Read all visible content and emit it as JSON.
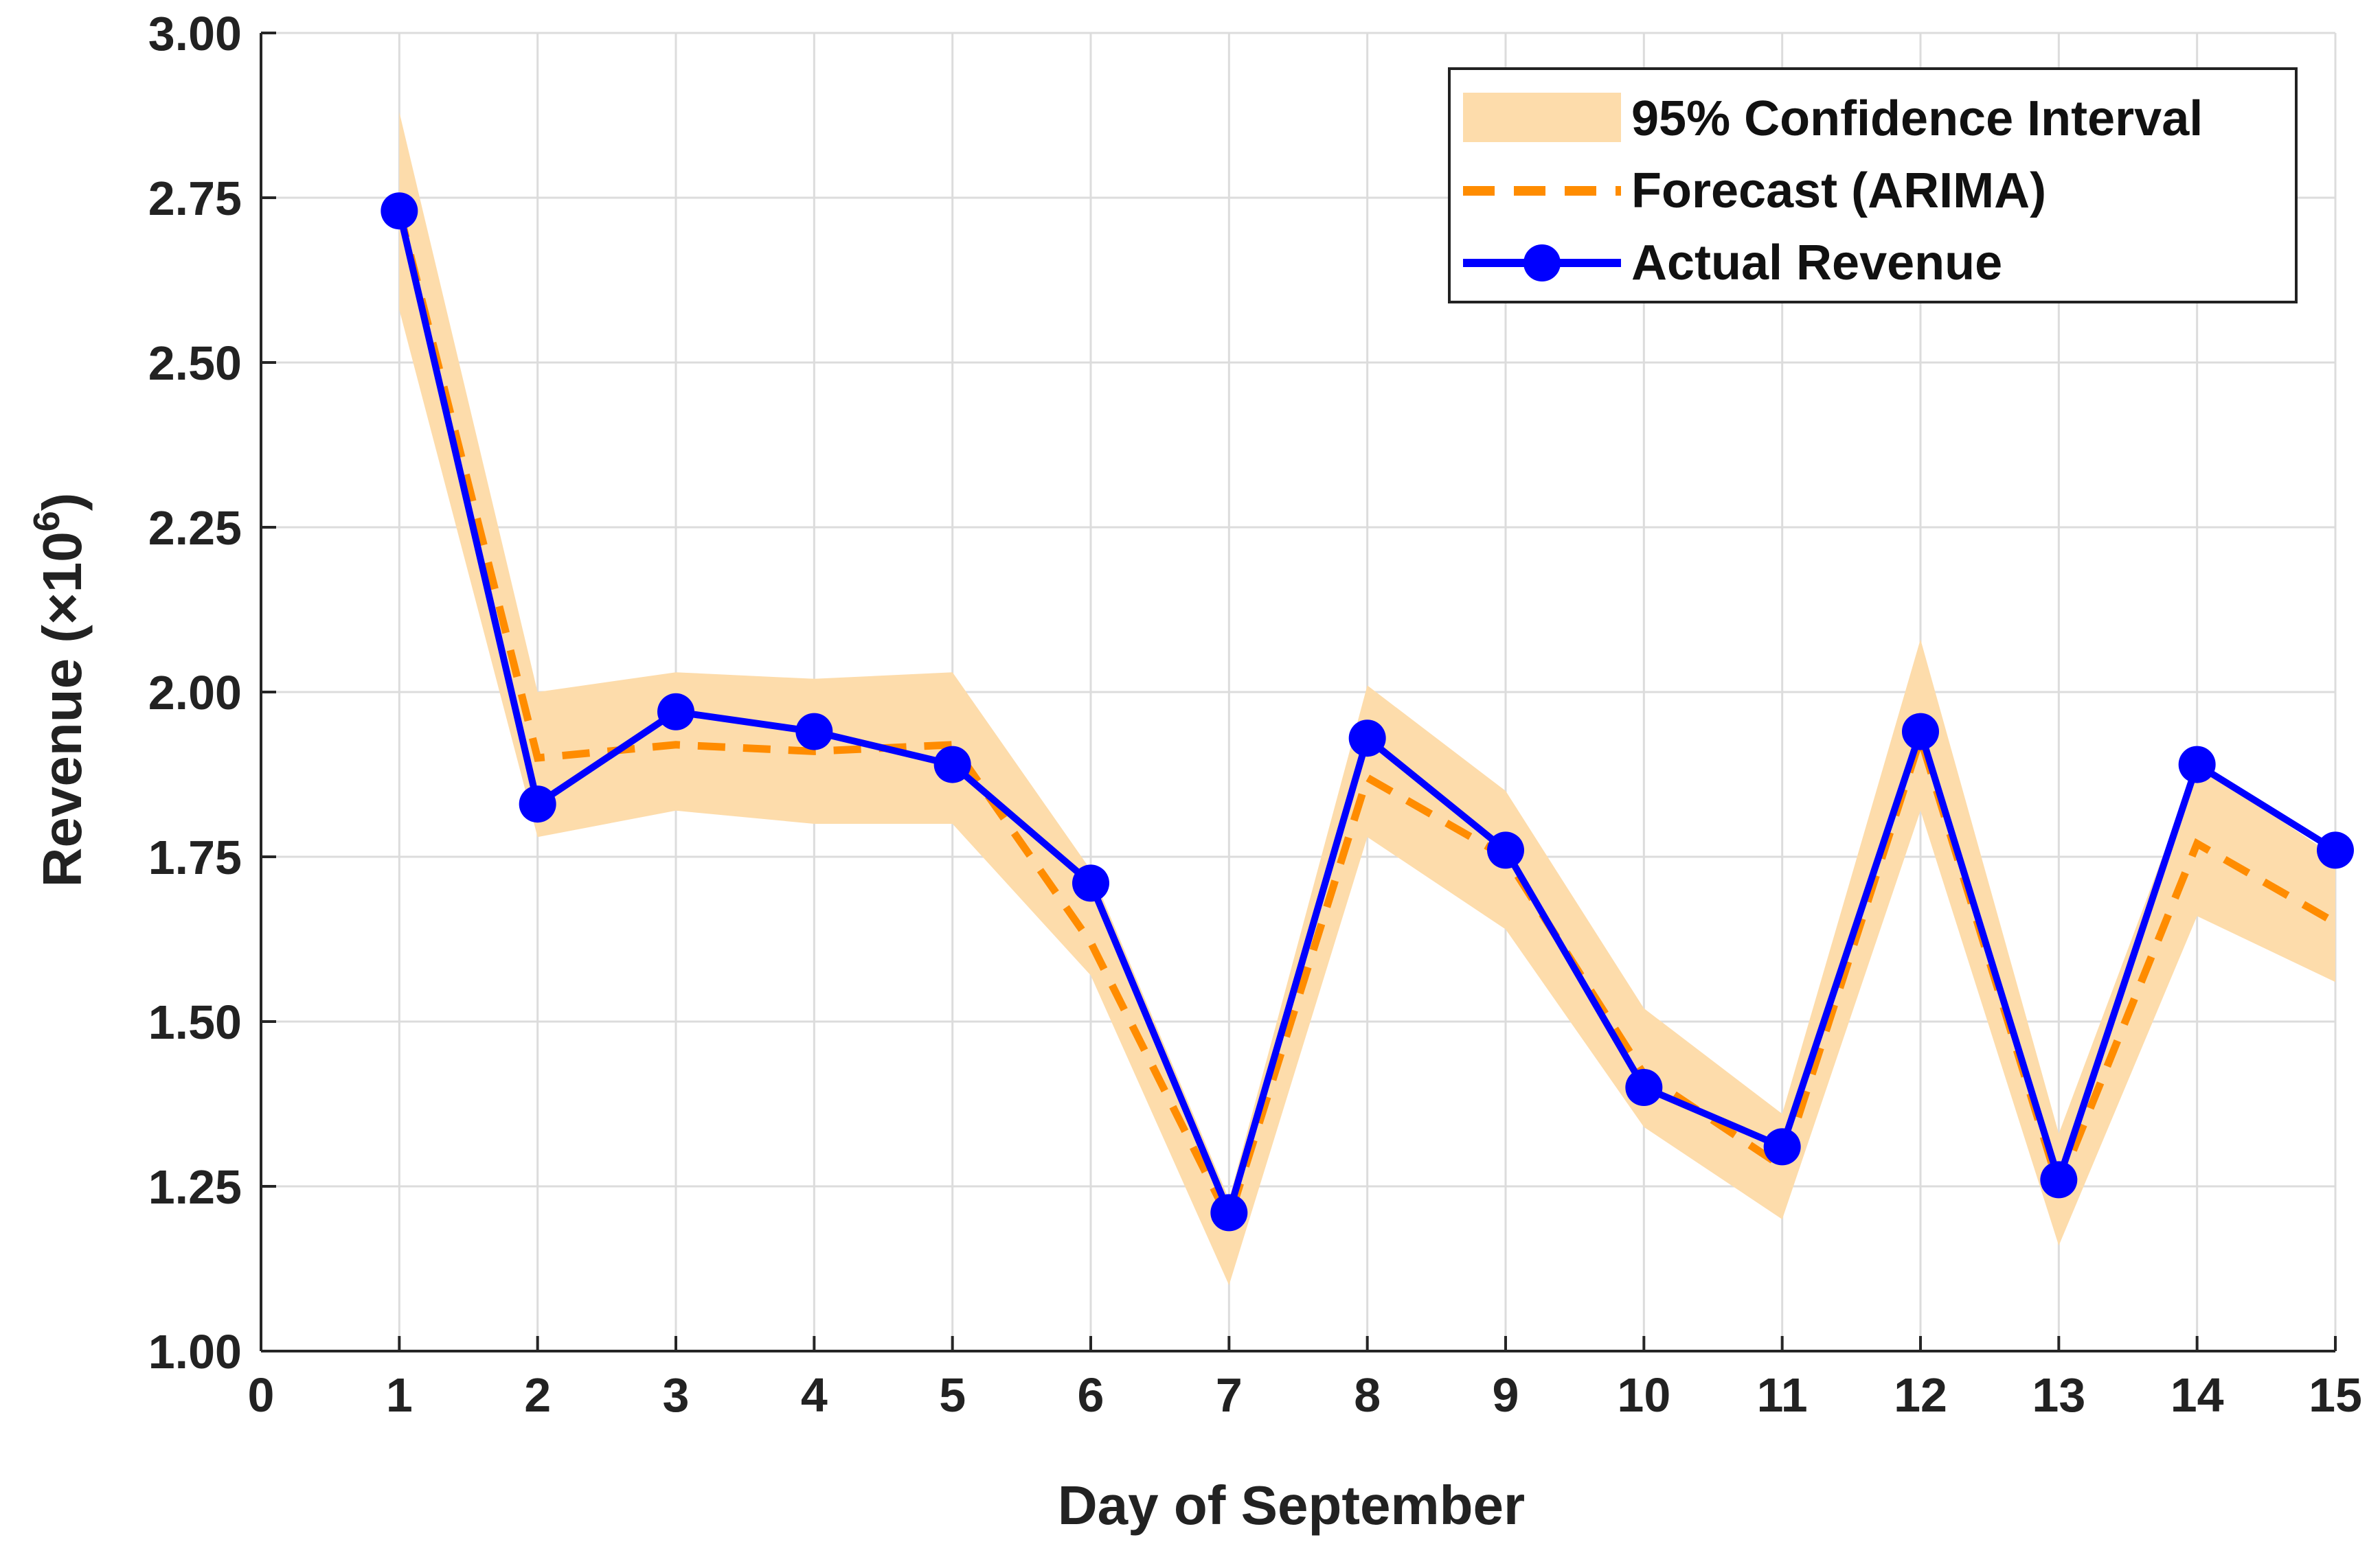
{
  "chart_data": {
    "type": "line",
    "title": "",
    "xlabel": "Day of September",
    "ylabel": "Revenue (×10",
    "ylabel_exponent": "6",
    "ylabel_close": ")",
    "xlim": [
      0,
      15
    ],
    "ylim": [
      1.0,
      3.0
    ],
    "grid": true,
    "legend_position": "top-right",
    "x_ticks": [
      0,
      1,
      2,
      3,
      4,
      5,
      6,
      7,
      8,
      9,
      10,
      11,
      12,
      13,
      14,
      15
    ],
    "y_ticks": [
      "1.00",
      "1.25",
      "1.50",
      "1.75",
      "2.00",
      "2.25",
      "2.50",
      "2.75",
      "3.00"
    ],
    "x": [
      1,
      2,
      3,
      4,
      5,
      6,
      7,
      8,
      9,
      10,
      11,
      12,
      13,
      14,
      15
    ],
    "series": [
      {
        "name": "95% Confidence Interval",
        "kind": "band",
        "color": "#FDDCAB",
        "lower": [
          2.58,
          1.78,
          1.82,
          1.8,
          1.8,
          1.57,
          1.1,
          1.78,
          1.64,
          1.34,
          1.2,
          1.82,
          1.16,
          1.66,
          1.56
        ],
        "upper": [
          2.88,
          2.0,
          2.03,
          2.02,
          2.03,
          1.73,
          1.23,
          2.01,
          1.85,
          1.52,
          1.36,
          2.08,
          1.33,
          1.89,
          1.75
        ]
      },
      {
        "name": "Forecast (ARIMA)",
        "kind": "dashed-line",
        "color": "#FF8C00",
        "values": [
          2.73,
          1.9,
          1.92,
          1.91,
          1.92,
          1.62,
          1.2,
          1.87,
          1.75,
          1.42,
          1.28,
          1.93,
          1.25,
          1.77,
          1.65
        ]
      },
      {
        "name": "Actual Revenue",
        "kind": "line-markers",
        "color": "#0000FF",
        "values": [
          2.73,
          1.83,
          1.97,
          1.94,
          1.89,
          1.71,
          1.21,
          1.93,
          1.76,
          1.4,
          1.31,
          1.94,
          1.26,
          1.89,
          1.76
        ]
      }
    ]
  }
}
